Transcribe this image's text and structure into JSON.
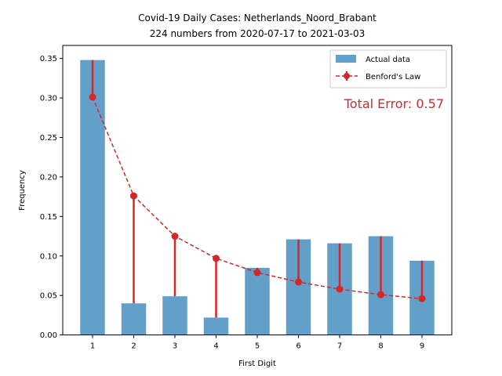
{
  "chart_data": {
    "type": "bar",
    "title_line1": "Covid-19 Daily Cases: Netherlands_Noord_Brabant",
    "title_line2": "224 numbers from 2020-07-17 to 2021-03-03",
    "xlabel": "First Digit",
    "ylabel": "Frequency",
    "categories": [
      "1",
      "2",
      "3",
      "4",
      "5",
      "6",
      "7",
      "8",
      "9"
    ],
    "ylim": [
      0,
      0.35
    ],
    "yticks": [
      "0.00",
      "0.05",
      "0.10",
      "0.15",
      "0.20",
      "0.25",
      "0.30",
      "0.35"
    ],
    "series": [
      {
        "name": "Actual data",
        "kind": "bar",
        "color": "#1f77b4",
        "values": [
          0.348,
          0.04,
          0.049,
          0.022,
          0.085,
          0.121,
          0.116,
          0.125,
          0.094
        ]
      },
      {
        "name": "Benford's Law",
        "kind": "line",
        "color": "#d62728",
        "values": [
          0.301,
          0.176,
          0.125,
          0.097,
          0.079,
          0.067,
          0.058,
          0.051,
          0.046
        ]
      }
    ],
    "annotation": "Total Error: 0.57",
    "legend_position": "top-right",
    "grid": false
  }
}
